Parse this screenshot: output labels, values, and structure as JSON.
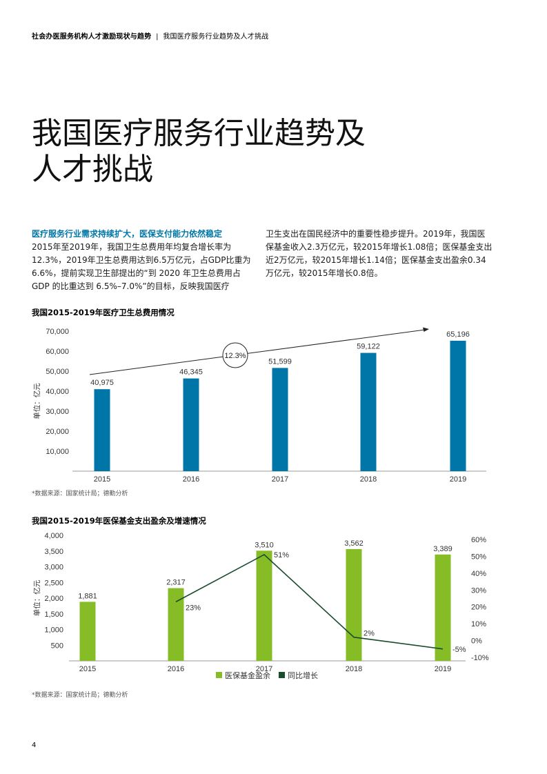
{
  "header": {
    "breadcrumb_report": "社会办医服务机构人才激励现状与趋势",
    "breadcrumb_separator": "|",
    "breadcrumb_section": "我国医疗服务行业趋势及人才挑战"
  },
  "page_title": {
    "line1": "我国医疗服务行业趋势及",
    "line2": "人才挑战"
  },
  "body": {
    "heading": "医疗服务行业需求持续扩大，医保支付能力依然稳定",
    "left_paragraph": "2015年至2019年，我国卫生总费用年均复合增长率为12.3%，2019年卫生总费用达到6.5万亿元，占GDP比重为6.6%，提前实现卫生部提出的“到 2020 年卫生总费用占 GDP 的比重达到 6.5%–7.0%”的目标，反映我国医疗",
    "right_paragraph": "卫生支出在国民经济中的重要性稳步提升。2019年，我国医保基金收入2.3万亿元，较2015年增长1.08倍；医保基金支出近2万亿元，较2015年增长1.14倍；医保基金支出盈余0.34万亿元，较2015年增长0.8倍。"
  },
  "chart1": {
    "title": "我国2015-2019年医疗卫生总费用情况",
    "source": "*数据来源：国家统计局；德勤分析"
  },
  "chart2": {
    "title": "我国2015-2019年医保基金支出盈余及增速情况",
    "source": "*数据来源：国家统计局；德勤分析"
  },
  "page_number": "4",
  "chart_data": [
    {
      "type": "bar",
      "title": "我国2015-2019年医疗卫生总费用情况",
      "categories": [
        "2015",
        "2016",
        "2017",
        "2018",
        "2019"
      ],
      "values": [
        40975,
        46345,
        51599,
        59122,
        65196
      ],
      "value_labels": [
        "40,975",
        "46,345",
        "51,599",
        "59,122",
        "65,196"
      ],
      "ylabel": "单位：亿元",
      "ylim": [
        0,
        70000
      ],
      "yticks": [
        10000,
        20000,
        30000,
        40000,
        50000,
        60000,
        70000
      ],
      "ytick_labels": [
        "10,000",
        "20,000",
        "30,000",
        "40,000",
        "50,000",
        "60,000",
        "70,000"
      ],
      "annotation": "12.3%",
      "color": "#0076a8",
      "grid": false
    },
    {
      "type": "bar",
      "title": "我国2015-2019年医保基金支出盈余及增速情况",
      "categories": [
        "2015",
        "2016",
        "2017",
        "2018",
        "2019"
      ],
      "series": [
        {
          "name": "医保基金盈余",
          "type": "bar",
          "values": [
            1881,
            2317,
            3510,
            3562,
            3389
          ],
          "value_labels": [
            "1,881",
            "2,317",
            "3,510",
            "3,562",
            "3,389"
          ],
          "color": "#86bc25"
        },
        {
          "name": "同比增长",
          "type": "line",
          "x": [
            "2016",
            "2017",
            "2018",
            "2019"
          ],
          "values": [
            23,
            51,
            2,
            -5
          ],
          "value_labels": [
            "23%",
            "51%",
            "2%",
            "-5%"
          ],
          "color": "#1a4d2e"
        }
      ],
      "ylabel": "单位：亿元",
      "ylim": [
        0,
        4000
      ],
      "yticks": [
        500,
        1000,
        1500,
        2000,
        2500,
        3000,
        3500,
        4000
      ],
      "ytick_labels": [
        "500",
        "1,000",
        "1,500",
        "2,000",
        "2,500",
        "3,000",
        "3,500",
        "4,000"
      ],
      "y2lim": [
        -10,
        60
      ],
      "y2ticks": [
        -10,
        0,
        10,
        20,
        30,
        40,
        50,
        60
      ],
      "y2tick_labels": [
        "-10%",
        "0%",
        "10%",
        "20%",
        "30%",
        "40%",
        "50%",
        "60%"
      ],
      "legend": "bottom-center",
      "grid": false
    }
  ]
}
